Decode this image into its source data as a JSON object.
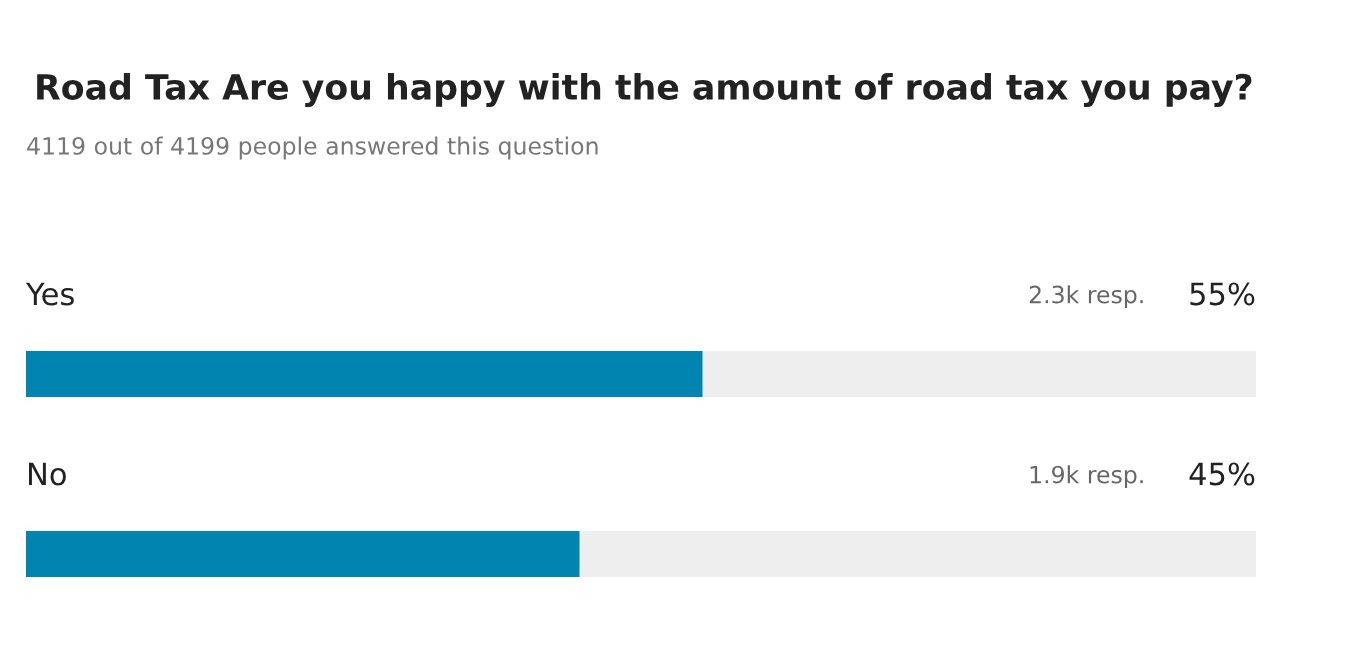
{
  "chart_data": {
    "type": "bar",
    "orientation": "horizontal",
    "title": "Road Tax Are you happy with the amount of road tax you pay?",
    "subtitle": "4119 out of 4199 people answered this question",
    "categories": [
      "Yes",
      "No"
    ],
    "values": [
      55,
      45
    ],
    "color": "#0284b0",
    "xlim": [
      0,
      100
    ],
    "value_labels": [
      "55%",
      "45%"
    ],
    "annotations": [
      "2.3k resp.",
      "1.9k resp."
    ]
  }
}
